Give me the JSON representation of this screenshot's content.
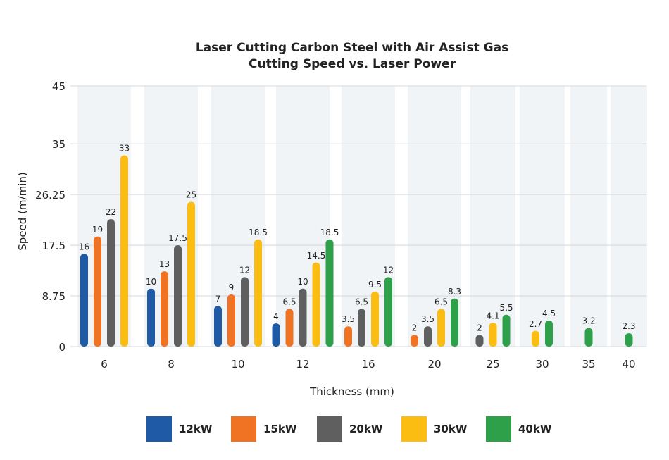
{
  "chart_data": {
    "type": "bar",
    "title": "Laser Cutting Carbon Steel with Air Assist Gas",
    "subtitle": "Cutting Speed vs. Laser Power",
    "xlabel": "Thickness (mm)",
    "ylabel": "Speed (m/min)",
    "ylim": [
      0,
      45
    ],
    "yticks": [
      "0",
      "8.75",
      "17.5",
      "26.25",
      "35",
      "45"
    ],
    "categories": [
      "6",
      "8",
      "10",
      "12",
      "16",
      "20",
      "25",
      "30",
      "35",
      "40"
    ],
    "grid": true,
    "legend_position": "bottom",
    "series": [
      {
        "name": "12kW",
        "color": "#1f5aa6",
        "values": [
          16,
          10,
          7,
          4,
          null,
          null,
          null,
          null,
          null,
          null
        ]
      },
      {
        "name": "15kW",
        "color": "#f07324",
        "values": [
          19,
          13,
          9,
          6.5,
          3.5,
          2,
          null,
          null,
          null,
          null
        ]
      },
      {
        "name": "20kW",
        "color": "#5f5f5f",
        "values": [
          22,
          17.5,
          12,
          10,
          6.5,
          3.5,
          2,
          null,
          null,
          null
        ]
      },
      {
        "name": "30kW",
        "color": "#fbbd12",
        "values": [
          33,
          25,
          18.5,
          14.5,
          9.5,
          6.5,
          4.1,
          2.7,
          null,
          null
        ]
      },
      {
        "name": "40kW",
        "color": "#2ea04a",
        "values": [
          null,
          null,
          null,
          18.5,
          12,
          8.3,
          5.5,
          4.5,
          3.2,
          2.3
        ]
      }
    ]
  }
}
